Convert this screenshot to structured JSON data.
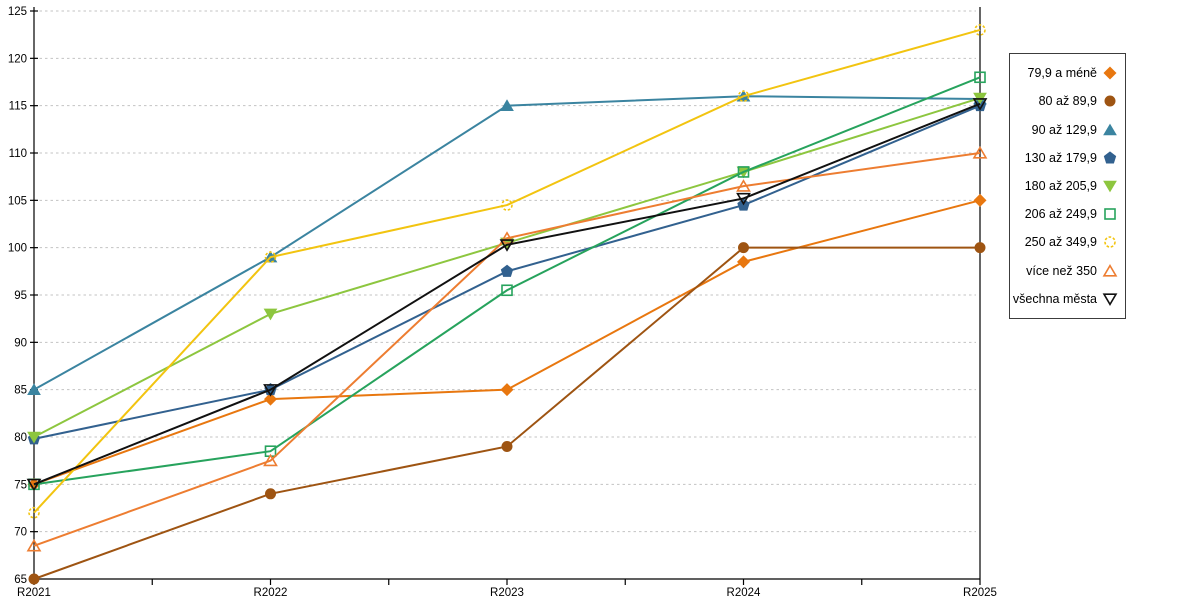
{
  "chart_data": {
    "type": "line",
    "title": "",
    "xlabel": "",
    "ylabel": "",
    "categories": [
      "R2021",
      "R2022",
      "R2023",
      "R2024",
      "R2025"
    ],
    "y_ticks": [
      65,
      70,
      75,
      80,
      85,
      90,
      95,
      100,
      105,
      110,
      115,
      120,
      125
    ],
    "ylim": [
      65,
      125
    ],
    "grid": "horizontal-dashed",
    "legend_position": "right",
    "series": [
      {
        "name": "79,9 a méně",
        "marker": "diamond",
        "fill": "solid",
        "color": "#E8770F",
        "values": [
          75,
          84,
          85,
          98.5,
          105
        ]
      },
      {
        "name": "80 až 89,9",
        "marker": "circle",
        "fill": "solid",
        "color": "#9E5412",
        "values": [
          65,
          74,
          79,
          100,
          100
        ]
      },
      {
        "name": "90 až 129,9",
        "marker": "triangle-up",
        "fill": "solid",
        "color": "#3B84A0",
        "values": [
          85,
          99,
          115,
          116,
          115.7
        ]
      },
      {
        "name": "130 až 179,9",
        "marker": "pentagon",
        "fill": "solid",
        "color": "#32618F",
        "values": [
          79.8,
          85,
          97.5,
          104.5,
          115
        ]
      },
      {
        "name": "180 až 205,9",
        "marker": "triangle-down",
        "fill": "solid",
        "color": "#8DC63F",
        "values": [
          80,
          93,
          100.5,
          108,
          115.8
        ]
      },
      {
        "name": "206 až 249,9",
        "marker": "square",
        "fill": "hollow",
        "color": "#27A35D",
        "values": [
          75,
          78.5,
          95.5,
          108,
          118
        ]
      },
      {
        "name": "250 až 349,9",
        "marker": "circle",
        "fill": "hollow",
        "color": "#F2C410",
        "dashed": true,
        "values": [
          72,
          99,
          104.5,
          116,
          123
        ]
      },
      {
        "name": "více než 350",
        "marker": "triangle-up",
        "fill": "hollow",
        "color": "#ED7D31",
        "values": [
          68.5,
          77.5,
          101,
          106.5,
          110
        ]
      },
      {
        "name": "všechna města",
        "marker": "triangle-down",
        "fill": "hollow",
        "color": "#111111",
        "values": [
          75,
          85,
          100.3,
          105.2,
          115.2
        ]
      }
    ]
  }
}
